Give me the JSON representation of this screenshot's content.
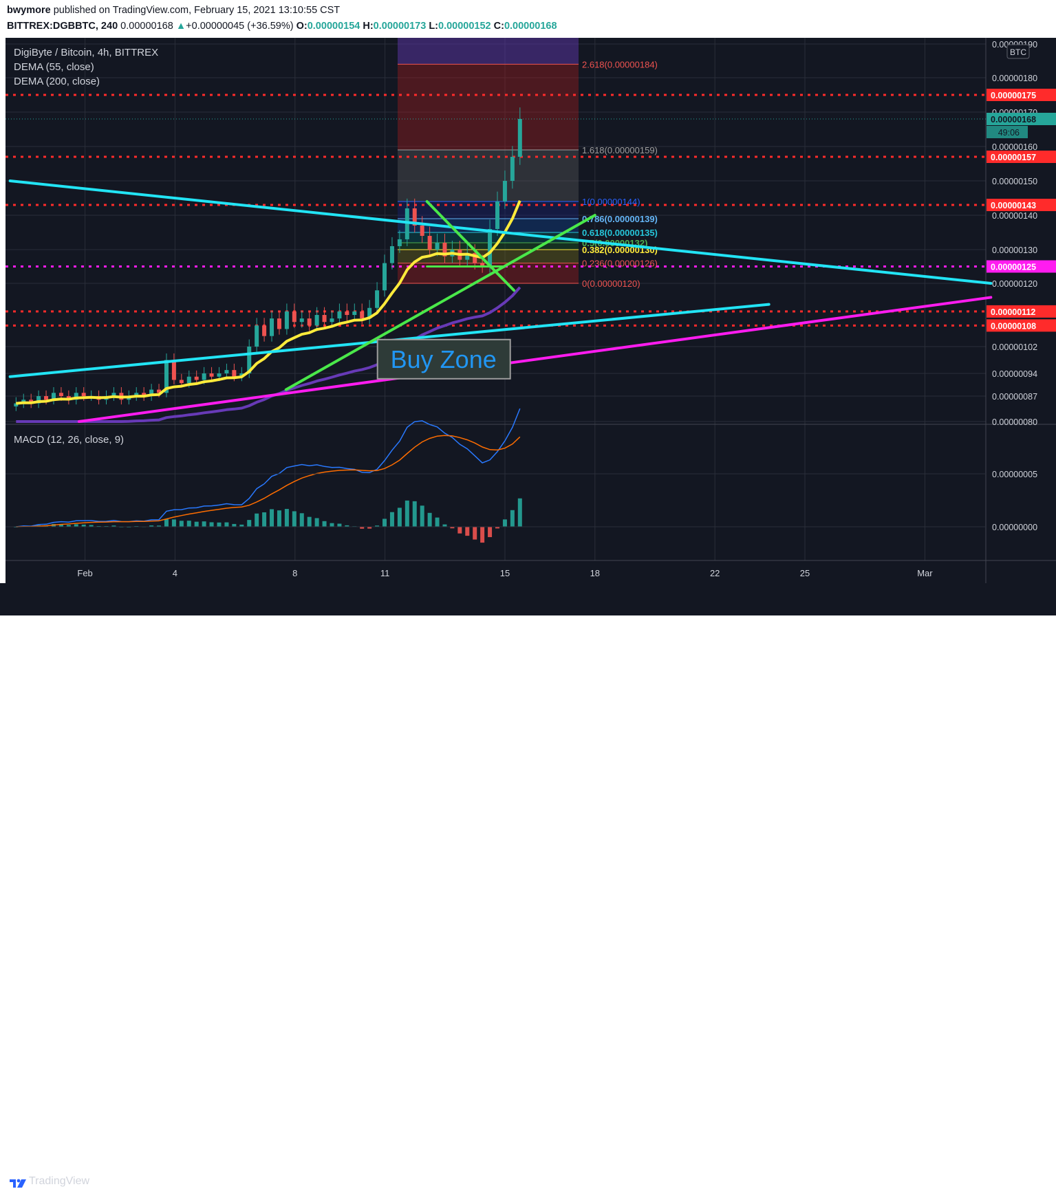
{
  "header": {
    "user": "bwymore",
    "published_text": "published on TradingView.com, February 15, 2021 13:10:55 CST",
    "symbol_line": "BITTREX:DGBBTC, 240",
    "last": "0.00000168",
    "change": "+0.00000045 (+36.59%)",
    "open_label": "O:",
    "open": "0.00000154",
    "high_label": "H:",
    "high": "0.00000173",
    "low_label": "L:",
    "low": "0.00000152",
    "close_label": "C:",
    "close": "0.00000168",
    "up_arrow": "▲"
  },
  "legend": {
    "title": "DigiByte / Bitcoin, 4h, BITTREX",
    "dema55": "DEMA (55, close)",
    "dema200": "DEMA (200, close)",
    "macd": "MACD (12, 26, close, 9)"
  },
  "footer": {
    "brand": "TradingView"
  },
  "colors": {
    "background": "#131722",
    "up": "#26a69a",
    "down": "#ef5350",
    "dema55": "#ffeb3b",
    "dema200": "#673ab7",
    "trend_cyan": "#22e4f5",
    "trend_magenta": "#ff1cf0",
    "trend_green": "#4ae84a",
    "level_red": "#ff2b2b",
    "level_magenta": "#ff1cf0",
    "macd_line": "#2979ff",
    "signal_line": "#ff6d00"
  },
  "chart_data": {
    "type": "line",
    "title": "DigiByte / Bitcoin, 4h, BITTREX",
    "currency_badge": "BTC",
    "countdown": "49:06",
    "x_ticks": [
      "Feb",
      "4",
      "8",
      "11",
      "15",
      "18",
      "22",
      "25",
      "Mar"
    ],
    "y_ticks": [
      "0.00000190",
      "0.00000180",
      "0.00000170",
      "0.00000160",
      "0.00000150",
      "0.00000140",
      "0.00000130",
      "0.00000120",
      "0.00000102",
      "0.00000094",
      "0.00000087",
      "0.00000080"
    ],
    "price_tags": [
      {
        "label": "0.00000175",
        "price": 1.75e-06,
        "color": "#ff2b2b"
      },
      {
        "label": "0.00000168",
        "price": 1.68e-06,
        "color": "#26a69a"
      },
      {
        "label": "0.00000157",
        "price": 1.57e-06,
        "color": "#ff2b2b"
      },
      {
        "label": "0.00000143",
        "price": 1.43e-06,
        "color": "#ff2b2b"
      },
      {
        "label": "0.00000125",
        "price": 1.25e-06,
        "color": "#ff1cf0"
      },
      {
        "label": "0.00000112",
        "price": 1.12e-06,
        "color": "#ff2b2b"
      },
      {
        "label": "0.00000108",
        "price": 1.08e-06,
        "color": "#ff2b2b"
      }
    ],
    "horizontal_levels": [
      1.75e-06,
      1.57e-06,
      1.43e-06,
      1.25e-06,
      1.12e-06,
      1.08e-06
    ],
    "fibonacci": [
      {
        "ratio": "2.618",
        "label": "2.618(0.00000184)",
        "price": 1.84e-06,
        "color": "#ef5350"
      },
      {
        "ratio": "1.618",
        "label": "1.618(0.00000159)",
        "price": 1.59e-06,
        "color": "#9e9e9e"
      },
      {
        "ratio": "1",
        "label": "1(0.00000144)",
        "price": 1.44e-06,
        "color": "#2962ff"
      },
      {
        "ratio": "0.786",
        "label": "0.786(0.00000139)",
        "price": 1.39e-06,
        "color": "#64b5f6"
      },
      {
        "ratio": "0.618",
        "label": "0.618(0.00000135)",
        "price": 1.35e-06,
        "color": "#26c6da"
      },
      {
        "ratio": "0.5",
        "label": "0.5(0.00000132)",
        "price": 1.32e-06,
        "color": "#4caf50"
      },
      {
        "ratio": "0.382",
        "label": "0.382(0.00000130)",
        "price": 1.3e-06,
        "color": "#ffeb3b"
      },
      {
        "ratio": "0.236",
        "label": "0.236(0.00000126)",
        "price": 1.26e-06,
        "color": "#ef5350"
      },
      {
        "ratio": "0",
        "label": "0(0.00000120)",
        "price": 1.2e-06,
        "color": "#ef5350"
      }
    ],
    "annotation": "Buy Zone",
    "price_series": {
      "x_unit": "days since Jan 31 2021",
      "close": [
        8.5e-07,
        8.6e-07,
        8.5e-07,
        8.7e-07,
        8.6e-07,
        8.8e-07,
        8.7e-07,
        8.6e-07,
        8.8e-07,
        8.7e-07,
        8.7e-07,
        8.6e-07,
        8.7e-07,
        8.8e-07,
        8.6e-07,
        8.7e-07,
        8.8e-07,
        8.7e-07,
        8.9e-07,
        8.8e-07,
        9.8e-07,
        9.2e-07,
        9.1e-07,
        9.3e-07,
        9.2e-07,
        9.4e-07,
        9.3e-07,
        9.4e-07,
        9.5e-07,
        9.3e-07,
        9.4e-07,
        1.02e-06,
        1.08e-06,
        1.05e-06,
        1.1e-06,
        1.07e-06,
        1.12e-06,
        1.09e-06,
        1.1e-06,
        1.08e-06,
        1.11e-06,
        1.09e-06,
        1.1e-06,
        1.12e-06,
        1.11e-06,
        1.12e-06,
        1.1e-06,
        1.13e-06,
        1.18e-06,
        1.26e-06,
        1.31e-06,
        1.33e-06,
        1.42e-06,
        1.37e-06,
        1.34e-06,
        1.3e-06,
        1.32e-06,
        1.28e-06,
        1.3e-06,
        1.27e-06,
        1.29e-06,
        1.26e-06,
        1.25e-06,
        1.36e-06,
        1.44e-06,
        1.5e-06,
        1.57e-06,
        1.68e-06
      ]
    },
    "macd": {
      "y_ticks": [
        "0.00000005",
        "0.00000000"
      ]
    }
  }
}
